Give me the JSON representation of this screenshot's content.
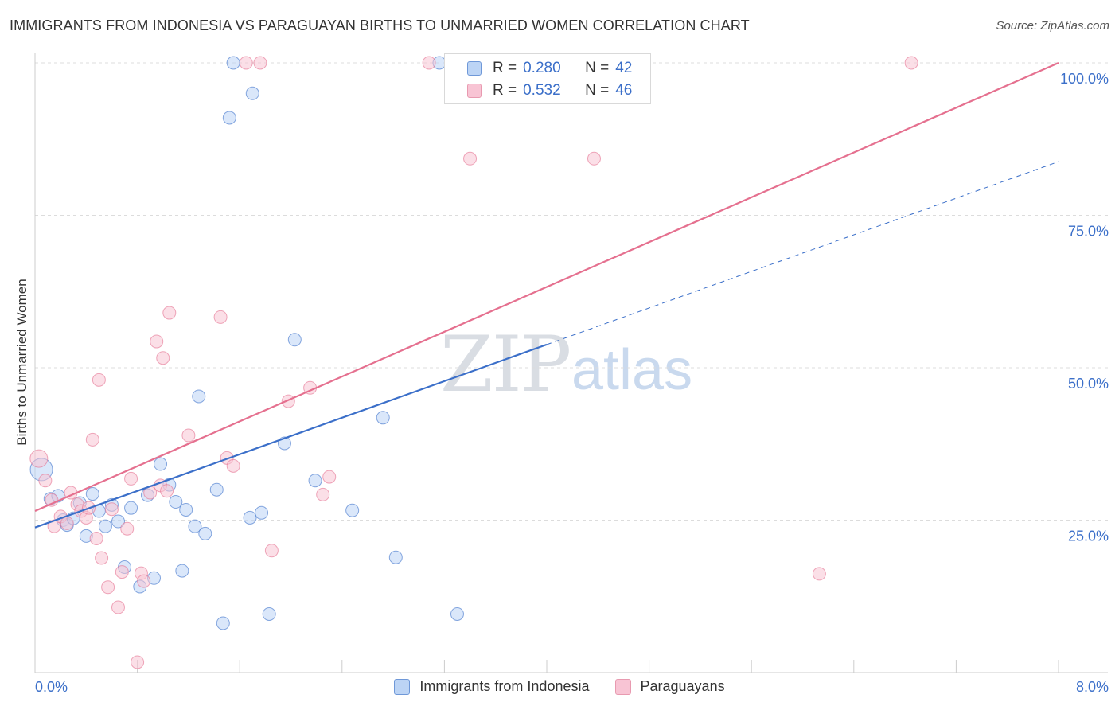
{
  "header": {
    "title": "IMMIGRANTS FROM INDONESIA VS PARAGUAYAN BIRTHS TO UNMARRIED WOMEN CORRELATION CHART",
    "source": "Source: ZipAtlas.com"
  },
  "watermark": {
    "zip": "ZIP",
    "atlas": "atlas"
  },
  "legend": {
    "series": [
      {
        "r_label": "R =",
        "r_value": "0.280",
        "n_label": "N =",
        "n_value": "42"
      },
      {
        "r_label": "R =",
        "r_value": "0.532",
        "n_label": "N =",
        "n_value": "46"
      }
    ]
  },
  "chart_data": {
    "type": "scatter",
    "title": "IMMIGRANTS FROM INDONESIA VS PARAGUAYAN BIRTHS TO UNMARRIED WOMEN CORRELATION CHART",
    "xlabel": "",
    "ylabel": "Births to Unmarried Women",
    "xlim": [
      0,
      8
    ],
    "ylim": [
      0,
      100
    ],
    "x_tick_labels": [
      "0.0%",
      "8.0%"
    ],
    "y_tick_labels": [
      "25.0%",
      "50.0%",
      "75.0%",
      "100.0%"
    ],
    "y_tick_values": [
      25,
      50,
      75,
      100
    ],
    "x_minor_ticks": [
      0,
      0.8,
      1.6,
      2.4,
      3.2,
      4.0,
      4.8,
      5.6,
      6.4,
      7.2,
      8.0
    ],
    "colors": {
      "blue": "#3b6fc9",
      "blue_fill": "#bcd4f5",
      "pink": "#e5708f",
      "pink_fill": "#f8c4d4",
      "axis_text": "#3b6fc9"
    },
    "series": [
      {
        "name": "Immigrants from Indonesia",
        "color": "#3b6fc9",
        "fill": "#bcd4f5",
        "trend": {
          "x0": 0,
          "y0": 23.8,
          "x1": 4.0,
          "y1": 53.8,
          "dash_to_x": 8.0
        },
        "points": [
          {
            "x": 0.05,
            "y": 33.3,
            "s": 14
          },
          {
            "x": 0.12,
            "y": 28.5
          },
          {
            "x": 0.18,
            "y": 29.0
          },
          {
            "x": 0.22,
            "y": 25.0
          },
          {
            "x": 0.25,
            "y": 24.2
          },
          {
            "x": 0.3,
            "y": 25.3
          },
          {
            "x": 0.35,
            "y": 27.8
          },
          {
            "x": 0.4,
            "y": 22.4
          },
          {
            "x": 0.45,
            "y": 29.3
          },
          {
            "x": 0.5,
            "y": 26.5
          },
          {
            "x": 0.55,
            "y": 24.0
          },
          {
            "x": 0.6,
            "y": 27.5
          },
          {
            "x": 0.65,
            "y": 24.8
          },
          {
            "x": 0.7,
            "y": 17.3
          },
          {
            "x": 0.75,
            "y": 27.0
          },
          {
            "x": 0.82,
            "y": 14.1
          },
          {
            "x": 0.88,
            "y": 29.1
          },
          {
            "x": 0.93,
            "y": 15.5
          },
          {
            "x": 0.98,
            "y": 34.2
          },
          {
            "x": 1.05,
            "y": 30.8
          },
          {
            "x": 1.1,
            "y": 28.0
          },
          {
            "x": 1.15,
            "y": 16.7
          },
          {
            "x": 1.18,
            "y": 26.7
          },
          {
            "x": 1.25,
            "y": 24.0
          },
          {
            "x": 1.28,
            "y": 45.3
          },
          {
            "x": 1.33,
            "y": 22.8
          },
          {
            "x": 1.42,
            "y": 30.0
          },
          {
            "x": 1.47,
            "y": 8.1
          },
          {
            "x": 1.52,
            "y": 91.0
          },
          {
            "x": 1.55,
            "y": 100.0
          },
          {
            "x": 1.68,
            "y": 25.4
          },
          {
            "x": 1.7,
            "y": 95.0
          },
          {
            "x": 1.77,
            "y": 26.2
          },
          {
            "x": 1.83,
            "y": 9.6
          },
          {
            "x": 1.95,
            "y": 37.6
          },
          {
            "x": 2.03,
            "y": 54.6
          },
          {
            "x": 2.19,
            "y": 31.5
          },
          {
            "x": 2.48,
            "y": 26.6
          },
          {
            "x": 2.72,
            "y": 41.8
          },
          {
            "x": 2.82,
            "y": 18.9
          },
          {
            "x": 3.16,
            "y": 100.0
          },
          {
            "x": 3.3,
            "y": 9.6
          }
        ]
      },
      {
        "name": "Paraguayans",
        "color": "#e5708f",
        "fill": "#f8c4d4",
        "trend": {
          "x0": 0,
          "y0": 26.5,
          "x1": 8.0,
          "y1": 100.0
        },
        "points": [
          {
            "x": 0.03,
            "y": 35.1,
            "s": 11
          },
          {
            "x": 0.08,
            "y": 31.5
          },
          {
            "x": 0.13,
            "y": 28.3
          },
          {
            "x": 0.15,
            "y": 24.0
          },
          {
            "x": 0.2,
            "y": 25.6
          },
          {
            "x": 0.25,
            "y": 24.5
          },
          {
            "x": 0.28,
            "y": 29.5
          },
          {
            "x": 0.33,
            "y": 27.6
          },
          {
            "x": 0.36,
            "y": 26.5
          },
          {
            "x": 0.4,
            "y": 25.4
          },
          {
            "x": 0.42,
            "y": 27.0
          },
          {
            "x": 0.45,
            "y": 38.2
          },
          {
            "x": 0.48,
            "y": 22.0
          },
          {
            "x": 0.5,
            "y": 48.0
          },
          {
            "x": 0.52,
            "y": 18.8
          },
          {
            "x": 0.57,
            "y": 14.0
          },
          {
            "x": 0.6,
            "y": 26.8
          },
          {
            "x": 0.65,
            "y": 10.7
          },
          {
            "x": 0.68,
            "y": 16.5
          },
          {
            "x": 0.72,
            "y": 23.6
          },
          {
            "x": 0.75,
            "y": 31.8
          },
          {
            "x": 0.8,
            "y": 1.7
          },
          {
            "x": 0.83,
            "y": 16.3
          },
          {
            "x": 0.85,
            "y": 15.0
          },
          {
            "x": 0.9,
            "y": 29.5
          },
          {
            "x": 0.95,
            "y": 54.3
          },
          {
            "x": 0.98,
            "y": 30.7
          },
          {
            "x": 1.0,
            "y": 51.6
          },
          {
            "x": 1.03,
            "y": 29.8
          },
          {
            "x": 1.05,
            "y": 59.0
          },
          {
            "x": 1.2,
            "y": 38.9
          },
          {
            "x": 1.45,
            "y": 58.3
          },
          {
            "x": 1.5,
            "y": 35.2
          },
          {
            "x": 1.55,
            "y": 33.9
          },
          {
            "x": 1.65,
            "y": 100.0
          },
          {
            "x": 1.76,
            "y": 100.0
          },
          {
            "x": 1.85,
            "y": 20.0
          },
          {
            "x": 1.98,
            "y": 44.5
          },
          {
            "x": 2.15,
            "y": 46.7
          },
          {
            "x": 2.25,
            "y": 29.2
          },
          {
            "x": 2.3,
            "y": 32.1
          },
          {
            "x": 3.08,
            "y": 100.0
          },
          {
            "x": 3.4,
            "y": 84.3
          },
          {
            "x": 4.37,
            "y": 84.3
          },
          {
            "x": 6.13,
            "y": 16.2
          },
          {
            "x": 6.85,
            "y": 100.0
          }
        ]
      }
    ]
  },
  "bottom_legend": [
    {
      "label": "Immigrants from Indonesia"
    },
    {
      "label": "Paraguayans"
    }
  ]
}
